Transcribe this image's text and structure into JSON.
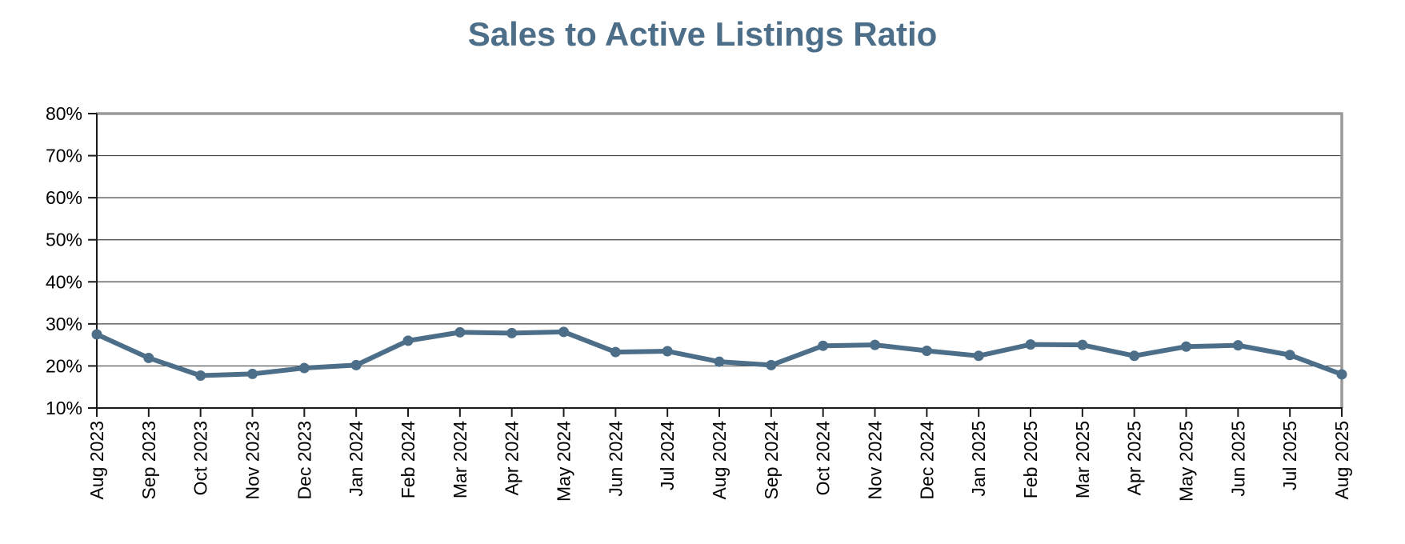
{
  "header": {
    "title": "Sales to Active Listings Ratio"
  },
  "colors": {
    "title": "#4d6e88",
    "line": "#4d6e88",
    "marker": "#4d6e88",
    "gridline": "#444444",
    "axis": "#1a1a1a",
    "plot_border": "#999999",
    "tick_label": "#000000",
    "background": "#ffffff"
  },
  "chart_data": {
    "type": "line",
    "title": "Sales to Active Listings Ratio",
    "categories": [
      "Aug 2023",
      "Sep 2023",
      "Oct 2023",
      "Nov 2023",
      "Dec 2023",
      "Jan 2024",
      "Feb 2024",
      "Mar 2024",
      "Apr 2024",
      "May 2024",
      "Jun 2024",
      "Jul 2024",
      "Aug 2024",
      "Sep 2024",
      "Oct 2024",
      "Nov 2024",
      "Dec 2024",
      "Jan 2025",
      "Feb 2025",
      "Mar 2025",
      "Apr 2025",
      "May 2025",
      "Jun 2025",
      "Jul 2025",
      "Aug 2025"
    ],
    "values": [
      27.5,
      21.9,
      17.7,
      18.1,
      19.5,
      20.2,
      26.0,
      28.0,
      27.8,
      28.1,
      23.3,
      23.5,
      21.0,
      20.2,
      24.8,
      25.0,
      23.6,
      22.4,
      25.1,
      25.0,
      22.4,
      24.6,
      24.9,
      22.6,
      18.0
    ],
    "xlabel": "",
    "ylabel": "",
    "ylim": [
      10,
      80
    ],
    "yticks": [
      10,
      20,
      30,
      40,
      50,
      60,
      70,
      80
    ],
    "ytick_format": "{v}%",
    "x_label_rotation": -90,
    "grid": "horizontal",
    "legend": "none",
    "marker": "circle"
  }
}
